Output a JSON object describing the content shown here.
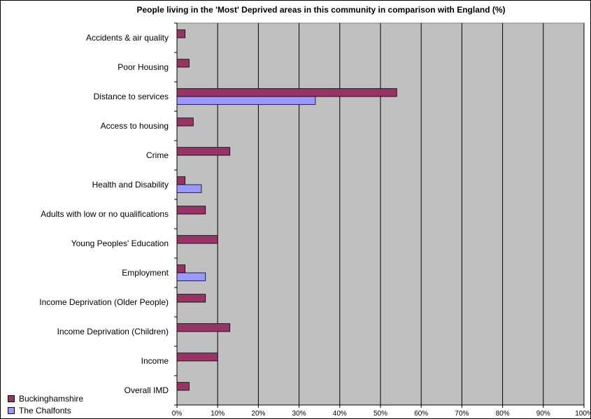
{
  "chart_data": {
    "type": "bar",
    "orientation": "horizontal",
    "title": "People living in the 'Most' Deprived areas in this community in comparison with England (%)",
    "xlabel": "",
    "ylabel": "",
    "xlim": [
      0,
      100
    ],
    "x_ticks": [
      "0%",
      "10%",
      "20%",
      "30%",
      "40%",
      "50%",
      "60%",
      "70%",
      "80%",
      "90%",
      "100%"
    ],
    "grid": true,
    "plot_background": "#c0c0c0",
    "legend_placement": "bottom-left",
    "categories": [
      "Accidents & air quality",
      "Poor Housing",
      "Distance to services",
      "Access to housing",
      "Crime",
      "Health and Disability",
      "Adults with low or no qualifications",
      "Young Peoples' Education",
      "Employment",
      "Income Deprivation (Older People)",
      "Income Deprivation (Children)",
      "Income",
      "Overall IMD"
    ],
    "series": [
      {
        "name": "Buckinghamshire",
        "color": "#993366",
        "values": [
          2,
          3,
          54,
          4,
          13,
          2,
          7,
          10,
          2,
          7,
          13,
          10,
          3
        ]
      },
      {
        "name": "The Chalfonts",
        "color": "#9999ff",
        "values": [
          0,
          0,
          34,
          0,
          0,
          6,
          0,
          0,
          7,
          0,
          0,
          0,
          0
        ]
      }
    ]
  }
}
